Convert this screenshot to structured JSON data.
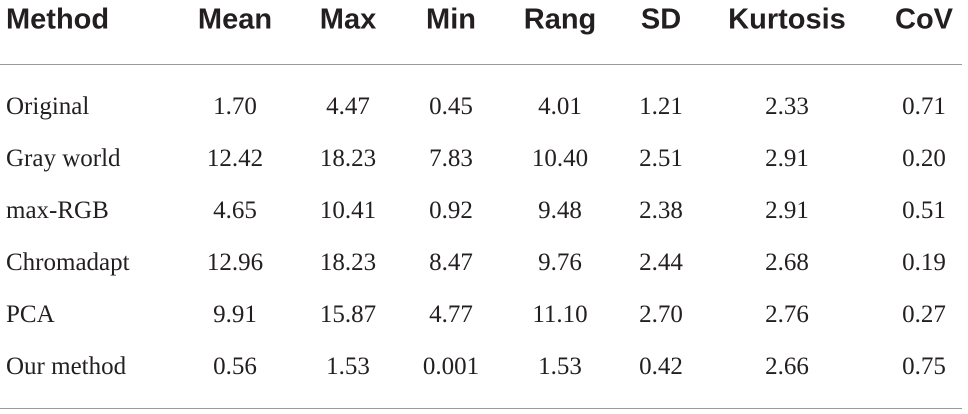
{
  "table": {
    "header": [
      "Method",
      "Mean",
      "Max",
      "Min",
      "Rang",
      "SD",
      "Kurtosis",
      "CoV"
    ],
    "rows": [
      [
        "Original",
        "1.70",
        "4.47",
        "0.45",
        "4.01",
        "1.21",
        "2.33",
        "0.71"
      ],
      [
        "Gray world",
        "12.42",
        "18.23",
        "7.83",
        "10.40",
        "2.51",
        "2.91",
        "0.20"
      ],
      [
        "max-RGB",
        "4.65",
        "10.41",
        "0.92",
        "9.48",
        "2.38",
        "2.91",
        "0.51"
      ],
      [
        "Chromadapt",
        "12.96",
        "18.23",
        "8.47",
        "9.76",
        "2.44",
        "2.68",
        "0.19"
      ],
      [
        "PCA",
        "9.91",
        "15.87",
        "4.77",
        "11.10",
        "2.70",
        "2.76",
        "0.27"
      ],
      [
        "Our method",
        "0.56",
        "1.53",
        "0.001",
        "1.53",
        "0.42",
        "2.66",
        "0.75"
      ]
    ]
  }
}
